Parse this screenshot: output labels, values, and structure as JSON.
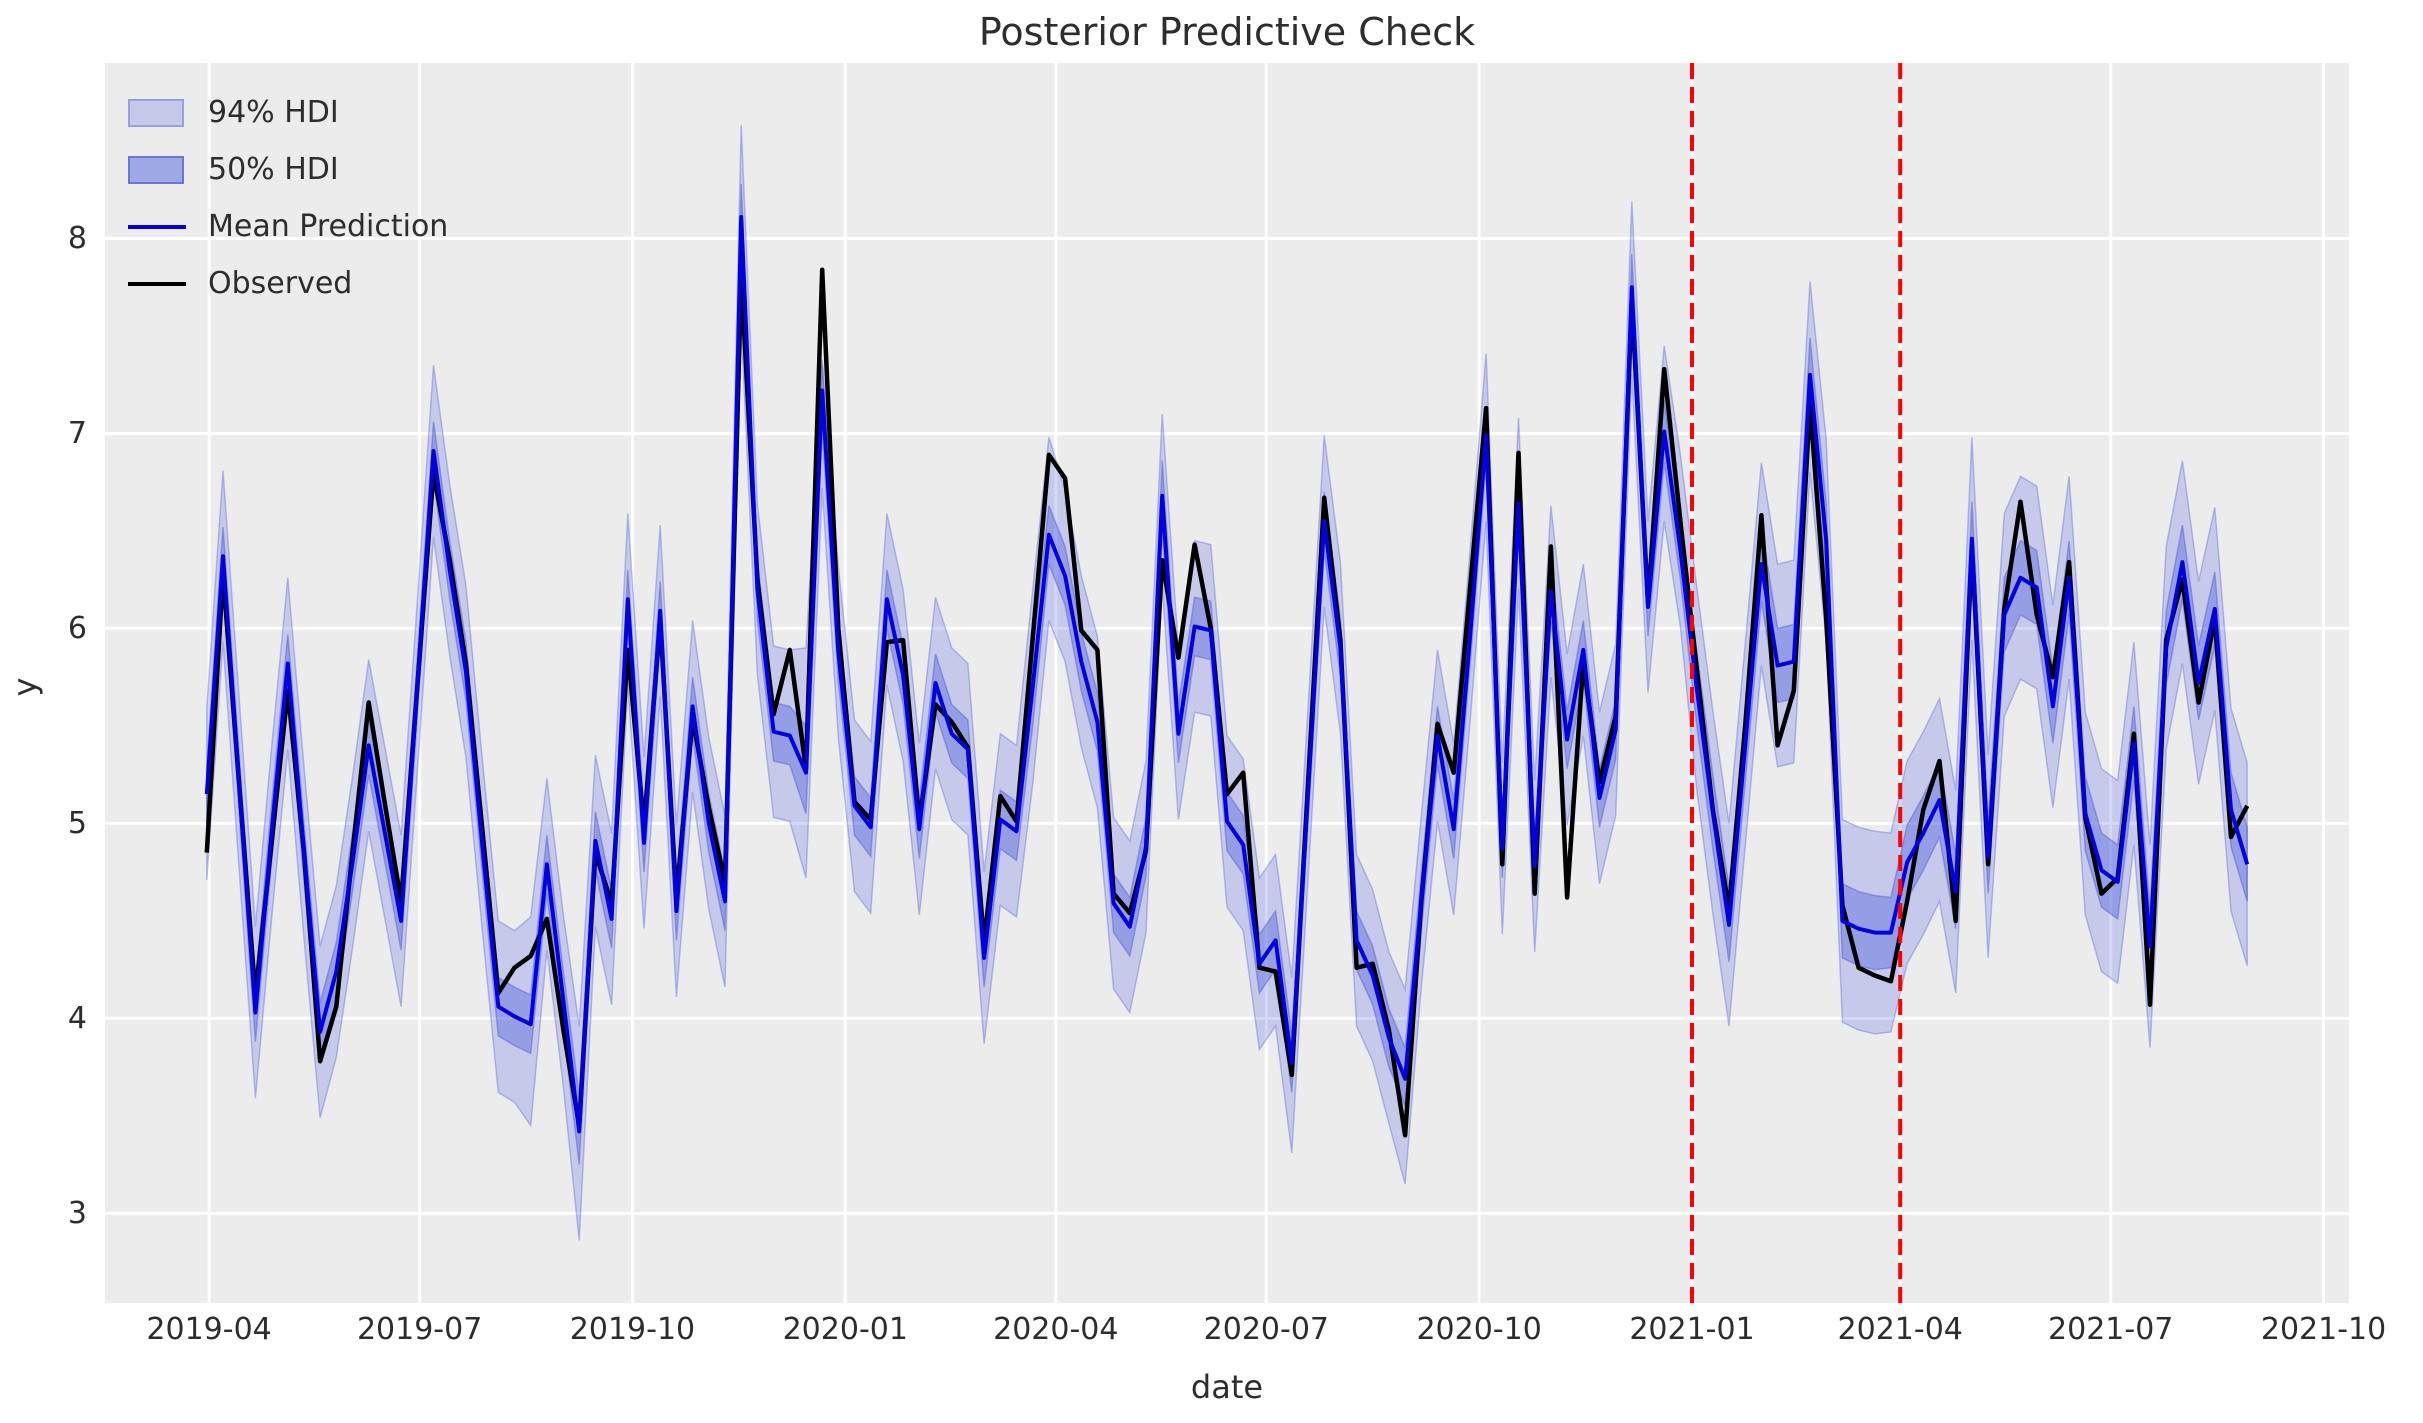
{
  "figure": {
    "title": "Posterior Predictive Check",
    "xlabel": "date",
    "ylabel": "y",
    "plot_bg": "#ececec",
    "grid_color": "#ffffff"
  },
  "legend": {
    "items": [
      {
        "label": "94% HDI",
        "type": "patch"
      },
      {
        "label": "50% HDI",
        "type": "patch"
      },
      {
        "label": "Mean Prediction",
        "type": "line",
        "color": "#0202dd"
      },
      {
        "label": "Observed",
        "type": "line",
        "color": "#000000"
      }
    ]
  },
  "chart_data": {
    "type": "line",
    "title": "Posterior Predictive Check",
    "xlabel": "date",
    "ylabel": "y",
    "grid": true,
    "legend_position": "upper left",
    "x_domain": [
      "2019-02-15",
      "2021-10-12"
    ],
    "y_domain": [
      2.54,
      8.9
    ],
    "y_ticks": [
      3,
      4,
      5,
      6,
      7,
      8
    ],
    "x_ticks": [
      {
        "date": "2019-04-01",
        "label": "2019-04"
      },
      {
        "date": "2019-07-01",
        "label": "2019-07"
      },
      {
        "date": "2019-10-01",
        "label": "2019-10"
      },
      {
        "date": "2020-01-01",
        "label": "2020-01"
      },
      {
        "date": "2020-04-01",
        "label": "2020-04"
      },
      {
        "date": "2020-07-01",
        "label": "2020-07"
      },
      {
        "date": "2020-10-01",
        "label": "2020-10"
      },
      {
        "date": "2021-01-01",
        "label": "2021-01"
      },
      {
        "date": "2021-04-01",
        "label": "2021-04"
      },
      {
        "date": "2021-07-01",
        "label": "2021-07"
      },
      {
        "date": "2021-10-01",
        "label": "2021-10"
      }
    ],
    "vlines": {
      "dates": [
        "2021-01-01",
        "2021-04-01"
      ],
      "color": "#ff0000",
      "style": "dashed"
    },
    "dates": [
      "2019-03-31",
      "2019-04-07",
      "2019-04-14",
      "2019-04-21",
      "2019-04-28",
      "2019-05-05",
      "2019-05-12",
      "2019-05-19",
      "2019-05-26",
      "2019-06-02",
      "2019-06-09",
      "2019-06-16",
      "2019-06-23",
      "2019-06-30",
      "2019-07-07",
      "2019-07-14",
      "2019-07-21",
      "2019-07-28",
      "2019-08-04",
      "2019-08-11",
      "2019-08-18",
      "2019-08-25",
      "2019-09-01",
      "2019-09-08",
      "2019-09-15",
      "2019-09-22",
      "2019-09-29",
      "2019-10-06",
      "2019-10-13",
      "2019-10-20",
      "2019-10-27",
      "2019-11-03",
      "2019-11-10",
      "2019-11-17",
      "2019-11-24",
      "2019-12-01",
      "2019-12-08",
      "2019-12-15",
      "2019-12-22",
      "2019-12-29",
      "2020-01-05",
      "2020-01-12",
      "2020-01-19",
      "2020-01-26",
      "2020-02-02",
      "2020-02-09",
      "2020-02-16",
      "2020-02-23",
      "2020-03-01",
      "2020-03-08",
      "2020-03-15",
      "2020-03-22",
      "2020-03-29",
      "2020-04-05",
      "2020-04-12",
      "2020-04-19",
      "2020-04-26",
      "2020-05-03",
      "2020-05-10",
      "2020-05-17",
      "2020-05-24",
      "2020-05-31",
      "2020-06-07",
      "2020-06-14",
      "2020-06-21",
      "2020-06-28",
      "2020-07-05",
      "2020-07-12",
      "2020-07-19",
      "2020-07-26",
      "2020-08-02",
      "2020-08-09",
      "2020-08-16",
      "2020-08-23",
      "2020-08-30",
      "2020-09-06",
      "2020-09-13",
      "2020-09-20",
      "2020-09-27",
      "2020-10-04",
      "2020-10-11",
      "2020-10-18",
      "2020-10-25",
      "2020-11-01",
      "2020-11-08",
      "2020-11-15",
      "2020-11-22",
      "2020-11-29",
      "2020-12-06",
      "2020-12-13",
      "2020-12-20",
      "2020-12-27",
      "2021-01-03",
      "2021-01-10",
      "2021-01-17",
      "2021-01-24",
      "2021-01-31",
      "2021-02-07",
      "2021-02-14",
      "2021-02-21",
      "2021-02-28",
      "2021-03-07",
      "2021-03-14",
      "2021-03-21",
      "2021-03-28",
      "2021-04-04",
      "2021-04-11",
      "2021-04-18",
      "2021-04-25",
      "2021-05-02",
      "2021-05-09",
      "2021-05-16",
      "2021-05-23",
      "2021-05-30",
      "2021-06-06",
      "2021-06-13",
      "2021-06-20",
      "2021-06-27",
      "2021-07-04",
      "2021-07-11",
      "2021-07-18",
      "2021-07-25",
      "2021-08-01",
      "2021-08-08",
      "2021-08-15",
      "2021-08-22",
      "2021-08-29"
    ],
    "series": [
      {
        "name": "Observed",
        "color": "#000000",
        "width": 4.5,
        "values": [
          4.85,
          6.28,
          5.2,
          4.12,
          4.9,
          5.68,
          4.85,
          3.78,
          4.06,
          4.85,
          5.62,
          5.1,
          4.6,
          5.7,
          6.8,
          6.35,
          5.82,
          4.98,
          4.13,
          4.26,
          4.32,
          4.51,
          3.95,
          3.45,
          4.85,
          4.59,
          5.89,
          4.99,
          6.04,
          4.62,
          5.54,
          5.08,
          4.7,
          7.81,
          6.25,
          5.56,
          5.89,
          5.28,
          7.84,
          6.0,
          5.11,
          5.02,
          5.93,
          5.94,
          5.01,
          5.61,
          5.52,
          5.39,
          4.39,
          5.14,
          5.01,
          5.95,
          6.89,
          6.77,
          5.99,
          5.89,
          4.64,
          4.54,
          4.86,
          6.35,
          5.85,
          6.43,
          6.0,
          5.15,
          5.26,
          4.26,
          4.24,
          3.71,
          5.2,
          6.67,
          5.94,
          4.26,
          4.28,
          3.94,
          3.4,
          4.6,
          5.51,
          5.26,
          6.2,
          7.13,
          4.79,
          6.9,
          4.64,
          6.42,
          4.62,
          5.83,
          5.21,
          5.55,
          7.68,
          6.13,
          7.33,
          6.55,
          5.8,
          5.07,
          4.56,
          5.5,
          6.58,
          5.4,
          5.68,
          7.15,
          6.05,
          4.58,
          4.26,
          4.22,
          4.19,
          4.6,
          5.07,
          5.32,
          4.5,
          6.42,
          4.79,
          6.1,
          6.65,
          6.07,
          5.75,
          6.34,
          5.03,
          4.64,
          4.72,
          5.46,
          4.07,
          5.94,
          6.25,
          5.62,
          6.05,
          4.93,
          5.09
        ]
      },
      {
        "name": "Mean Prediction",
        "color": "#0202dd",
        "width": 4,
        "values": [
          5.15,
          6.37,
          5.2,
          4.03,
          4.95,
          5.82,
          4.85,
          3.93,
          4.24,
          4.8,
          5.4,
          4.95,
          4.5,
          5.7,
          6.91,
          6.3,
          5.78,
          4.9,
          4.06,
          4.01,
          3.97,
          4.79,
          4.1,
          3.42,
          4.91,
          4.51,
          6.15,
          4.9,
          6.09,
          4.55,
          5.6,
          5.0,
          4.6,
          8.11,
          6.2,
          5.47,
          5.45,
          5.26,
          7.22,
          5.88,
          5.09,
          4.98,
          6.15,
          5.76,
          4.97,
          5.72,
          5.46,
          5.38,
          4.31,
          5.02,
          4.96,
          5.7,
          6.48,
          6.27,
          5.83,
          5.52,
          4.59,
          4.47,
          4.88,
          6.68,
          5.46,
          6.01,
          5.99,
          5.01,
          4.89,
          4.28,
          4.4,
          3.77,
          5.15,
          6.55,
          5.9,
          4.4,
          4.22,
          3.9,
          3.69,
          4.6,
          5.45,
          4.97,
          5.95,
          6.99,
          4.87,
          6.64,
          4.78,
          6.19,
          5.43,
          5.89,
          5.13,
          5.48,
          7.75,
          6.11,
          7.01,
          6.4,
          5.7,
          5.06,
          4.48,
          5.4,
          6.33,
          5.81,
          5.83,
          7.3,
          6.45,
          4.5,
          4.46,
          4.44,
          4.44,
          4.8,
          4.95,
          5.12,
          4.65,
          6.46,
          4.83,
          6.07,
          6.26,
          6.21,
          5.6,
          6.26,
          5.05,
          4.76,
          4.7,
          5.41,
          4.37,
          5.9,
          6.34,
          5.72,
          6.1,
          5.07,
          4.79
        ]
      }
    ],
    "bands": [
      {
        "name": "94% HDI",
        "fill": "rgba(82,97,222,0.25)",
        "edge": "rgba(95,108,220,0.40)",
        "lo": [
          4.71,
          5.93,
          4.76,
          3.59,
          4.51,
          5.38,
          4.41,
          3.49,
          3.8,
          4.36,
          4.96,
          4.51,
          4.06,
          5.26,
          6.47,
          5.86,
          5.34,
          4.46,
          3.62,
          3.57,
          3.45,
          4.35,
          3.66,
          2.86,
          4.47,
          4.07,
          5.71,
          4.46,
          5.65,
          4.11,
          5.16,
          4.56,
          4.16,
          7.55,
          5.76,
          5.03,
          5.01,
          4.72,
          6.72,
          5.44,
          4.65,
          4.54,
          5.71,
          5.32,
          4.53,
          5.28,
          5.02,
          4.94,
          3.87,
          4.58,
          4.52,
          5.2,
          6.04,
          5.83,
          5.39,
          5.08,
          4.15,
          4.03,
          4.44,
          6.22,
          5.02,
          5.57,
          5.55,
          4.57,
          4.45,
          3.84,
          3.96,
          3.31,
          4.71,
          6.11,
          5.46,
          3.96,
          3.78,
          3.46,
          3.15,
          4.16,
          5.01,
          4.53,
          5.51,
          6.55,
          4.43,
          6.2,
          4.34,
          5.75,
          4.99,
          5.45,
          4.69,
          5.04,
          7.3,
          5.67,
          6.55,
          6.01,
          5.18,
          4.54,
          3.96,
          4.88,
          5.81,
          5.29,
          5.31,
          6.8,
          5.93,
          3.98,
          3.94,
          3.92,
          3.93,
          4.28,
          4.43,
          4.6,
          4.13,
          5.94,
          4.31,
          5.55,
          5.74,
          5.69,
          5.08,
          5.74,
          4.53,
          4.24,
          4.18,
          4.89,
          3.85,
          5.38,
          5.82,
          5.2,
          5.58,
          4.55,
          4.27
        ],
        "hi": [
          5.59,
          6.81,
          5.64,
          4.47,
          5.39,
          6.26,
          5.29,
          4.37,
          4.68,
          5.24,
          5.84,
          5.39,
          4.94,
          6.14,
          7.35,
          6.74,
          6.22,
          5.34,
          4.5,
          4.45,
          4.52,
          5.23,
          4.54,
          3.96,
          5.35,
          4.95,
          6.59,
          5.34,
          6.53,
          4.99,
          6.04,
          5.44,
          5.04,
          8.58,
          6.64,
          5.91,
          5.89,
          5.9,
          7.38,
          6.32,
          5.53,
          5.42,
          6.59,
          6.2,
          5.41,
          6.16,
          5.9,
          5.82,
          4.75,
          5.46,
          5.4,
          6.2,
          6.98,
          6.71,
          6.27,
          5.96,
          5.03,
          4.91,
          5.32,
          7.1,
          5.9,
          6.45,
          6.43,
          5.45,
          5.33,
          4.72,
          4.84,
          4.21,
          5.59,
          6.99,
          6.34,
          4.84,
          4.66,
          4.34,
          4.15,
          5.04,
          5.89,
          5.41,
          6.39,
          7.41,
          5.31,
          7.08,
          5.22,
          6.63,
          5.87,
          6.33,
          5.57,
          5.92,
          8.19,
          6.55,
          7.45,
          6.89,
          6.22,
          5.58,
          5.0,
          5.92,
          6.85,
          6.33,
          6.35,
          7.78,
          6.97,
          5.02,
          4.98,
          4.96,
          4.95,
          5.32,
          5.47,
          5.64,
          5.17,
          6.98,
          5.35,
          6.59,
          6.78,
          6.73,
          6.12,
          6.78,
          5.57,
          5.28,
          5.22,
          5.93,
          4.89,
          6.42,
          6.86,
          6.24,
          6.62,
          5.59,
          5.31
        ]
      },
      {
        "name": "50% HDI",
        "fill": "rgba(82,97,222,0.42)",
        "edge": "rgba(80,92,210,0.45)",
        "lo": [
          5.0,
          6.22,
          5.05,
          3.88,
          4.8,
          5.67,
          4.7,
          3.78,
          4.09,
          4.65,
          5.25,
          4.8,
          4.35,
          5.55,
          6.76,
          6.15,
          5.63,
          4.75,
          3.91,
          3.86,
          3.82,
          4.64,
          3.95,
          3.25,
          4.76,
          4.36,
          6.0,
          4.75,
          5.94,
          4.4,
          5.45,
          4.85,
          4.45,
          7.92,
          6.05,
          5.32,
          5.3,
          5.05,
          7.02,
          5.73,
          4.94,
          4.83,
          6.0,
          5.61,
          4.82,
          5.57,
          5.31,
          5.23,
          4.16,
          4.87,
          4.81,
          5.5,
          6.33,
          6.12,
          5.68,
          5.37,
          4.44,
          4.32,
          4.73,
          6.5,
          5.31,
          5.86,
          5.84,
          4.86,
          4.74,
          4.13,
          4.25,
          3.62,
          5.0,
          6.4,
          5.75,
          4.25,
          4.07,
          3.75,
          3.55,
          4.45,
          5.3,
          4.82,
          5.8,
          6.84,
          4.72,
          6.49,
          4.63,
          6.04,
          5.28,
          5.74,
          4.98,
          5.33,
          7.58,
          5.96,
          6.85,
          6.25,
          5.51,
          4.87,
          4.29,
          5.21,
          6.14,
          5.62,
          5.64,
          7.11,
          6.26,
          4.31,
          4.27,
          4.25,
          4.26,
          4.61,
          4.76,
          4.93,
          4.46,
          6.27,
          4.64,
          5.88,
          6.07,
          6.02,
          5.41,
          6.07,
          4.86,
          4.57,
          4.51,
          5.22,
          4.18,
          5.71,
          6.15,
          5.53,
          5.91,
          4.88,
          4.6
        ],
        "hi": [
          5.3,
          6.52,
          5.35,
          4.18,
          5.1,
          5.97,
          5.0,
          4.08,
          4.39,
          4.95,
          5.55,
          5.1,
          4.65,
          5.85,
          7.06,
          6.45,
          5.93,
          5.05,
          4.21,
          4.16,
          4.12,
          4.94,
          4.25,
          3.6,
          5.06,
          4.66,
          6.3,
          5.05,
          6.24,
          4.7,
          5.75,
          5.15,
          4.75,
          8.28,
          6.35,
          5.62,
          5.6,
          5.5,
          7.35,
          6.03,
          5.24,
          5.13,
          6.3,
          5.91,
          5.12,
          5.87,
          5.61,
          5.53,
          4.46,
          5.17,
          5.11,
          5.9,
          6.63,
          6.42,
          5.98,
          5.67,
          4.74,
          4.62,
          5.03,
          6.86,
          5.61,
          6.16,
          6.14,
          5.16,
          5.04,
          4.43,
          4.55,
          3.92,
          5.3,
          6.7,
          6.05,
          4.55,
          4.37,
          4.05,
          3.85,
          4.75,
          5.6,
          5.12,
          6.1,
          7.14,
          5.02,
          6.79,
          4.93,
          6.34,
          5.58,
          6.04,
          5.28,
          5.63,
          7.92,
          6.26,
          7.17,
          6.55,
          5.89,
          5.25,
          4.67,
          5.59,
          6.52,
          6.0,
          6.02,
          7.49,
          6.64,
          4.69,
          4.65,
          4.63,
          4.62,
          4.99,
          5.14,
          5.31,
          4.84,
          6.65,
          5.02,
          6.26,
          6.45,
          6.4,
          5.79,
          6.45,
          5.24,
          4.95,
          4.89,
          5.6,
          4.56,
          6.09,
          6.53,
          5.91,
          6.29,
          5.26,
          4.98
        ]
      }
    ]
  }
}
